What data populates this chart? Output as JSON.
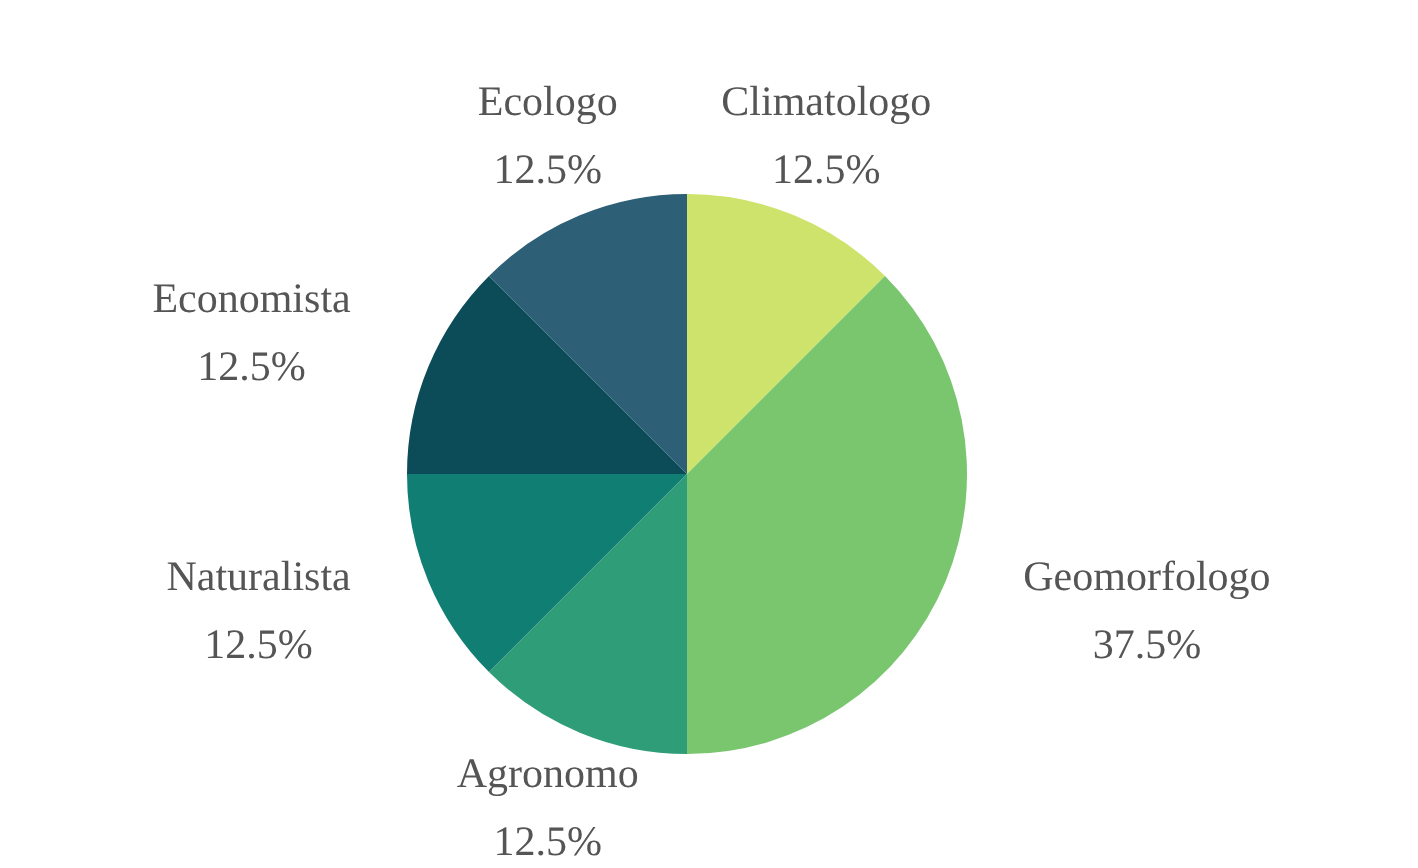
{
  "chart_data": {
    "type": "pie",
    "categories": [
      "Climatologo",
      "Geomorfologo",
      "Agronomo",
      "Naturalista",
      "Economista",
      "Ecologo"
    ],
    "values": [
      12.5,
      37.5,
      12.5,
      12.5,
      12.5,
      12.5
    ],
    "colors": [
      "#cde36b",
      "#79c66f",
      "#2f9e78",
      "#117e73",
      "#0c4c59",
      "#2d5f76"
    ],
    "value_labels": [
      "12.5%",
      "37.5%",
      "12.5%",
      "12.5%",
      "12.5%",
      "12.5%"
    ],
    "legend": false
  }
}
